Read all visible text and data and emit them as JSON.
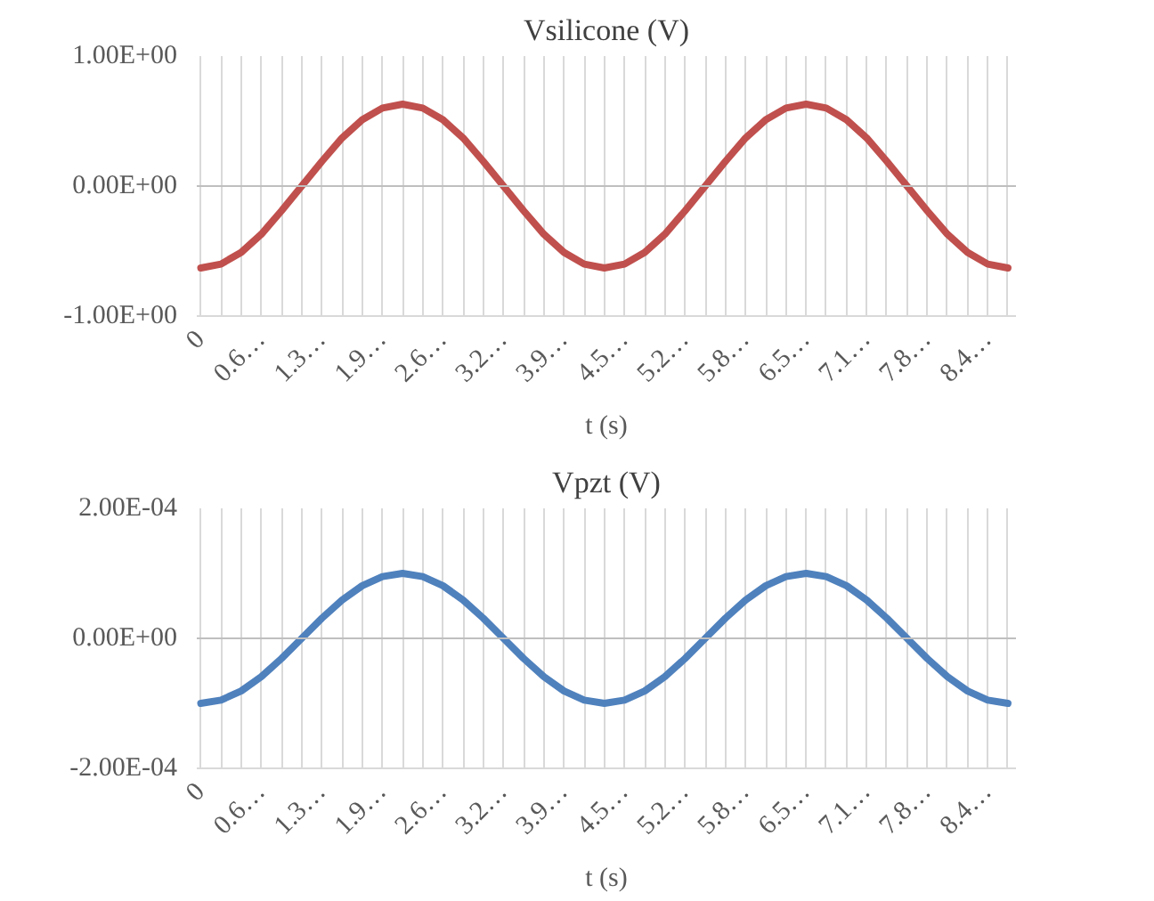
{
  "chart_data": [
    {
      "type": "line",
      "title": "Vsilicone (V)",
      "xlabel": "t (s)",
      "categories": [
        "0",
        null,
        null,
        "0.6…",
        null,
        null,
        "1.3…",
        null,
        null,
        "1.9…",
        null,
        null,
        "2.6…",
        null,
        null,
        "3.2…",
        null,
        null,
        "3.9…",
        null,
        null,
        "4.5…",
        null,
        null,
        "5.2…",
        null,
        null,
        "5.8…",
        null,
        null,
        "6.5…",
        null,
        null,
        "7.1…",
        null,
        null,
        "7.8…",
        null,
        null,
        "8.4…",
        null
      ],
      "series": [
        {
          "color": "#c0504d",
          "values": [
            -0.63,
            -0.6,
            -0.51,
            -0.37,
            -0.19,
            0,
            0.19,
            0.37,
            0.51,
            0.6,
            0.63,
            0.6,
            0.51,
            0.37,
            0.19,
            0,
            -0.19,
            -0.37,
            -0.51,
            -0.6,
            -0.63,
            -0.6,
            -0.51,
            -0.37,
            -0.19,
            0,
            0.19,
            0.37,
            0.51,
            0.6,
            0.63,
            0.6,
            0.51,
            0.37,
            0.19,
            0,
            -0.19,
            -0.37,
            -0.51,
            -0.6,
            -0.63
          ]
        }
      ],
      "ylim": [
        -1,
        1
      ],
      "yticks": [
        {
          "value": -1,
          "label": "-1.00E+00"
        },
        {
          "value": 0,
          "label": "0.00E+00"
        },
        {
          "value": 1,
          "label": "1.00E+00"
        }
      ],
      "grid": true
    },
    {
      "type": "line",
      "title": "Vpzt (V)",
      "xlabel": "t (s)",
      "categories": [
        "0",
        null,
        null,
        "0.6…",
        null,
        null,
        "1.3…",
        null,
        null,
        "1.9…",
        null,
        null,
        "2.6…",
        null,
        null,
        "3.2…",
        null,
        null,
        "3.9…",
        null,
        null,
        "4.5…",
        null,
        null,
        "5.2…",
        null,
        null,
        "5.8…",
        null,
        null,
        "6.5…",
        null,
        null,
        "7.1…",
        null,
        null,
        "7.8…",
        null,
        null,
        "8.4…",
        null
      ],
      "series": [
        {
          "color": "#4f81bd",
          "values": [
            -0.0001,
            -9.5e-05,
            -8.1e-05,
            -5.9e-05,
            -3.1e-05,
            0,
            3.1e-05,
            5.9e-05,
            8.1e-05,
            9.5e-05,
            0.0001,
            9.5e-05,
            8.1e-05,
            5.9e-05,
            3.1e-05,
            0,
            -3.1e-05,
            -5.9e-05,
            -8.1e-05,
            -9.5e-05,
            -0.0001,
            -9.5e-05,
            -8.1e-05,
            -5.9e-05,
            -3.1e-05,
            0,
            3.1e-05,
            5.9e-05,
            8.1e-05,
            9.5e-05,
            0.0001,
            9.5e-05,
            8.1e-05,
            5.9e-05,
            3.1e-05,
            0,
            -3.1e-05,
            -5.9e-05,
            -8.1e-05,
            -9.5e-05,
            -0.0001
          ]
        }
      ],
      "ylim": [
        -0.0002,
        0.0002
      ],
      "yticks": [
        {
          "value": -0.0002,
          "label": "-2.00E-04"
        },
        {
          "value": 0,
          "label": "0.00E+00"
        },
        {
          "value": 0.0002,
          "label": "2.00E-04"
        }
      ],
      "grid": true
    }
  ]
}
